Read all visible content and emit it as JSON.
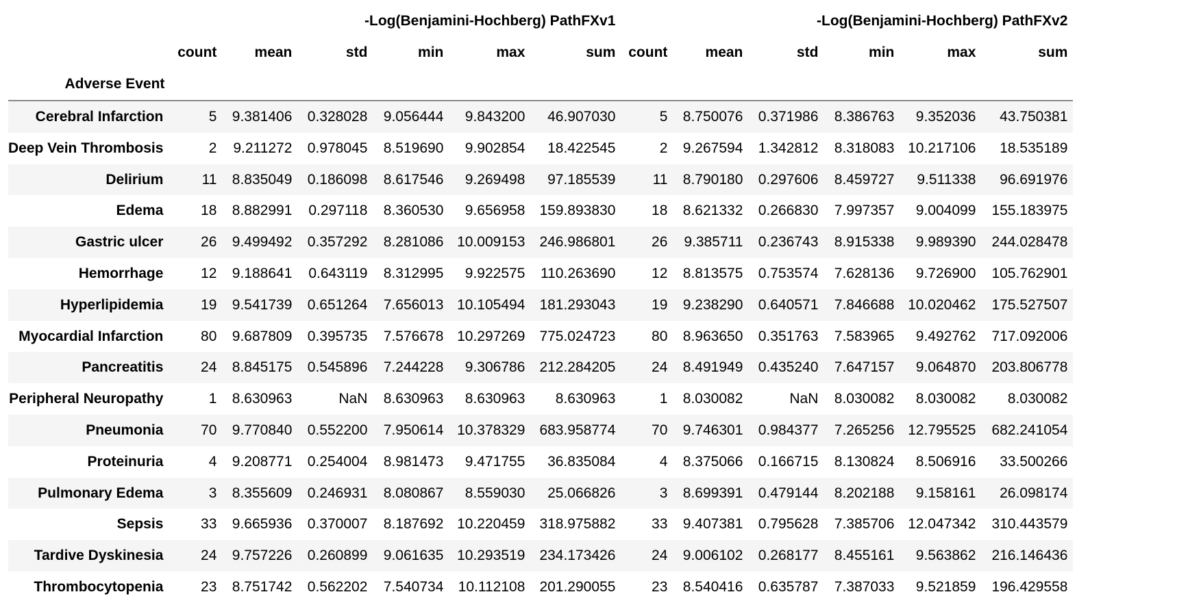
{
  "table": {
    "groups": [
      "-Log(Benjamini-Hochberg) PathFXv1",
      "-Log(Benjamini-Hochberg) PathFXv2"
    ],
    "stat_columns": [
      "count",
      "mean",
      "std",
      "min",
      "max",
      "sum"
    ],
    "index_name": "Adverse Event",
    "rows": [
      {
        "event": "Cerebral Infarction",
        "v1": [
          "5",
          "9.381406",
          "0.328028",
          "9.056444",
          "9.843200",
          "46.907030"
        ],
        "v2": [
          "5",
          "8.750076",
          "0.371986",
          "8.386763",
          "9.352036",
          "43.750381"
        ]
      },
      {
        "event": "Deep Vein Thrombosis",
        "v1": [
          "2",
          "9.211272",
          "0.978045",
          "8.519690",
          "9.902854",
          "18.422545"
        ],
        "v2": [
          "2",
          "9.267594",
          "1.342812",
          "8.318083",
          "10.217106",
          "18.535189"
        ]
      },
      {
        "event": "Delirium",
        "v1": [
          "11",
          "8.835049",
          "0.186098",
          "8.617546",
          "9.269498",
          "97.185539"
        ],
        "v2": [
          "11",
          "8.790180",
          "0.297606",
          "8.459727",
          "9.511338",
          "96.691976"
        ]
      },
      {
        "event": "Edema",
        "v1": [
          "18",
          "8.882991",
          "0.297118",
          "8.360530",
          "9.656958",
          "159.893830"
        ],
        "v2": [
          "18",
          "8.621332",
          "0.266830",
          "7.997357",
          "9.004099",
          "155.183975"
        ]
      },
      {
        "event": "Gastric ulcer",
        "v1": [
          "26",
          "9.499492",
          "0.357292",
          "8.281086",
          "10.009153",
          "246.986801"
        ],
        "v2": [
          "26",
          "9.385711",
          "0.236743",
          "8.915338",
          "9.989390",
          "244.028478"
        ]
      },
      {
        "event": "Hemorrhage",
        "v1": [
          "12",
          "9.188641",
          "0.643119",
          "8.312995",
          "9.922575",
          "110.263690"
        ],
        "v2": [
          "12",
          "8.813575",
          "0.753574",
          "7.628136",
          "9.726900",
          "105.762901"
        ]
      },
      {
        "event": "Hyperlipidemia",
        "v1": [
          "19",
          "9.541739",
          "0.651264",
          "7.656013",
          "10.105494",
          "181.293043"
        ],
        "v2": [
          "19",
          "9.238290",
          "0.640571",
          "7.846688",
          "10.020462",
          "175.527507"
        ]
      },
      {
        "event": "Myocardial Infarction",
        "v1": [
          "80",
          "9.687809",
          "0.395735",
          "7.576678",
          "10.297269",
          "775.024723"
        ],
        "v2": [
          "80",
          "8.963650",
          "0.351763",
          "7.583965",
          "9.492762",
          "717.092006"
        ]
      },
      {
        "event": "Pancreatitis",
        "v1": [
          "24",
          "8.845175",
          "0.545896",
          "7.244228",
          "9.306786",
          "212.284205"
        ],
        "v2": [
          "24",
          "8.491949",
          "0.435240",
          "7.647157",
          "9.064870",
          "203.806778"
        ]
      },
      {
        "event": "Peripheral Neuropathy",
        "v1": [
          "1",
          "8.630963",
          "NaN",
          "8.630963",
          "8.630963",
          "8.630963"
        ],
        "v2": [
          "1",
          "8.030082",
          "NaN",
          "8.030082",
          "8.030082",
          "8.030082"
        ]
      },
      {
        "event": "Pneumonia",
        "v1": [
          "70",
          "9.770840",
          "0.552200",
          "7.950614",
          "10.378329",
          "683.958774"
        ],
        "v2": [
          "70",
          "9.746301",
          "0.984377",
          "7.265256",
          "12.795525",
          "682.241054"
        ]
      },
      {
        "event": "Proteinuria",
        "v1": [
          "4",
          "9.208771",
          "0.254004",
          "8.981473",
          "9.471755",
          "36.835084"
        ],
        "v2": [
          "4",
          "8.375066",
          "0.166715",
          "8.130824",
          "8.506916",
          "33.500266"
        ]
      },
      {
        "event": "Pulmonary Edema",
        "v1": [
          "3",
          "8.355609",
          "0.246931",
          "8.080867",
          "8.559030",
          "25.066826"
        ],
        "v2": [
          "3",
          "8.699391",
          "0.479144",
          "8.202188",
          "9.158161",
          "26.098174"
        ]
      },
      {
        "event": "Sepsis",
        "v1": [
          "33",
          "9.665936",
          "0.370007",
          "8.187692",
          "10.220459",
          "318.975882"
        ],
        "v2": [
          "33",
          "9.407381",
          "0.795628",
          "7.385706",
          "12.047342",
          "310.443579"
        ]
      },
      {
        "event": "Tardive Dyskinesia",
        "v1": [
          "24",
          "9.757226",
          "0.260899",
          "9.061635",
          "10.293519",
          "234.173426"
        ],
        "v2": [
          "24",
          "9.006102",
          "0.268177",
          "8.455161",
          "9.563862",
          "216.146436"
        ]
      },
      {
        "event": "Thrombocytopenia",
        "v1": [
          "23",
          "8.751742",
          "0.562202",
          "7.540734",
          "10.112108",
          "201.290055"
        ],
        "v2": [
          "23",
          "8.540416",
          "0.635787",
          "7.387033",
          "9.521859",
          "196.429558"
        ]
      }
    ]
  }
}
